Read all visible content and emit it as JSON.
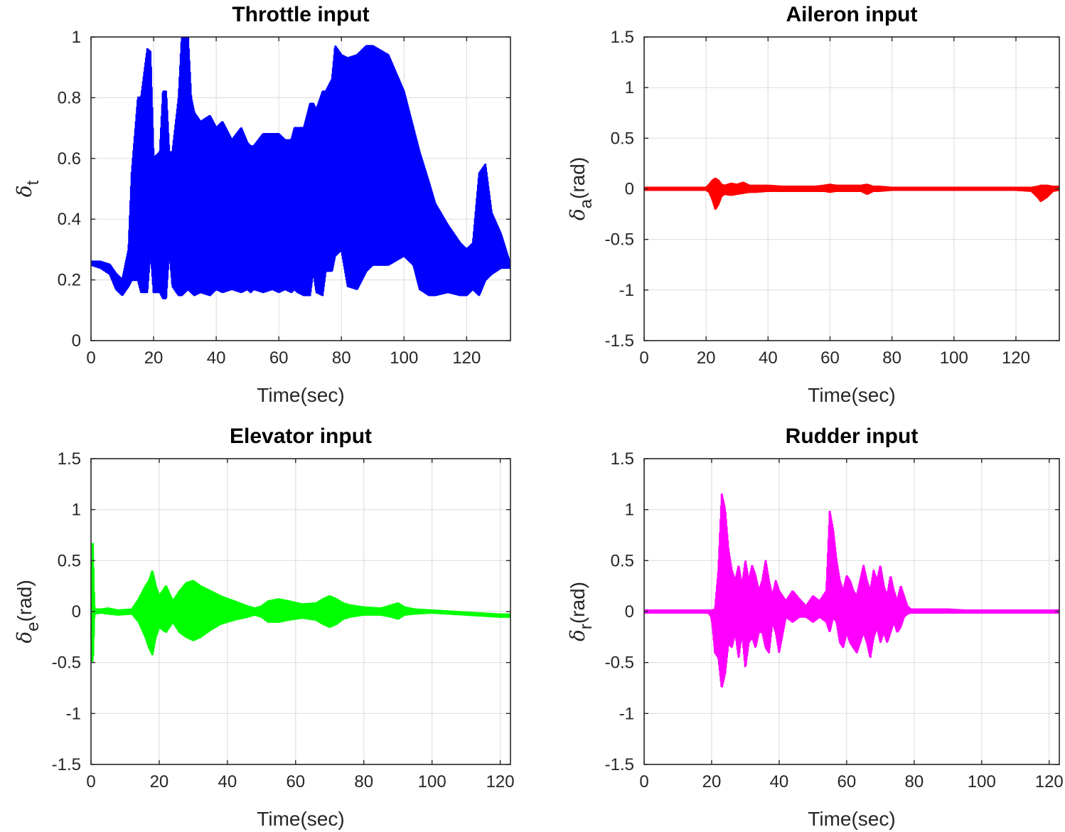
{
  "chart_data": [
    {
      "type": "line",
      "title": "Throttle input",
      "xlabel": "Time(sec)",
      "ylabel": {
        "symbol": "δ",
        "subscript": "t",
        "unit": ""
      },
      "xlim": [
        0,
        134
      ],
      "ylim": [
        0,
        1
      ],
      "xticks": [
        0,
        20,
        40,
        60,
        80,
        100,
        120
      ],
      "yticks": [
        0,
        0.2,
        0.4,
        0.6,
        0.8,
        1
      ],
      "ytick_labels": [
        "0",
        "0.2",
        "0.4",
        "0.6",
        "0.8",
        "1"
      ],
      "grid": true,
      "color": "#0000ff",
      "envelope": {
        "x": [
          0,
          3,
          6,
          8,
          10,
          12,
          13,
          15,
          16,
          18,
          19,
          20,
          22,
          23,
          24,
          25,
          26,
          28,
          29,
          31,
          32,
          33,
          35,
          38,
          40,
          42,
          45,
          48,
          50,
          51,
          52,
          55,
          58,
          60,
          62,
          64,
          65,
          66,
          68,
          70,
          71,
          72,
          74,
          75,
          77,
          78,
          80,
          82,
          85,
          88,
          90,
          95,
          100,
          103,
          105,
          108,
          110,
          114,
          118,
          120,
          122,
          124,
          126,
          128,
          131,
          134
        ],
        "high": [
          0.26,
          0.26,
          0.25,
          0.22,
          0.2,
          0.3,
          0.55,
          0.8,
          0.8,
          0.96,
          0.95,
          0.6,
          0.62,
          0.82,
          0.82,
          0.62,
          0.62,
          0.8,
          1.0,
          1.0,
          0.8,
          0.75,
          0.72,
          0.74,
          0.7,
          0.72,
          0.66,
          0.7,
          0.65,
          0.64,
          0.64,
          0.68,
          0.68,
          0.68,
          0.66,
          0.66,
          0.7,
          0.7,
          0.7,
          0.78,
          0.78,
          0.76,
          0.82,
          0.82,
          0.86,
          0.97,
          0.94,
          0.93,
          0.94,
          0.97,
          0.97,
          0.94,
          0.82,
          0.7,
          0.62,
          0.52,
          0.45,
          0.38,
          0.32,
          0.3,
          0.32,
          0.55,
          0.58,
          0.42,
          0.35,
          0.25
        ],
        "low": [
          0.25,
          0.24,
          0.22,
          0.17,
          0.15,
          0.18,
          0.2,
          0.2,
          0.16,
          0.16,
          0.3,
          0.16,
          0.16,
          0.14,
          0.14,
          0.3,
          0.18,
          0.15,
          0.15,
          0.17,
          0.16,
          0.15,
          0.16,
          0.15,
          0.17,
          0.16,
          0.17,
          0.16,
          0.17,
          0.16,
          0.17,
          0.16,
          0.17,
          0.16,
          0.17,
          0.16,
          0.17,
          0.16,
          0.15,
          0.15,
          0.23,
          0.16,
          0.15,
          0.23,
          0.23,
          0.28,
          0.3,
          0.18,
          0.17,
          0.23,
          0.25,
          0.25,
          0.28,
          0.25,
          0.17,
          0.15,
          0.15,
          0.16,
          0.15,
          0.15,
          0.17,
          0.15,
          0.2,
          0.22,
          0.24,
          0.24
        ]
      }
    },
    {
      "type": "line",
      "title": "Aileron input",
      "xlabel": "Time(sec)",
      "ylabel": {
        "symbol": "δ",
        "subscript": "a",
        "unit": "(rad)"
      },
      "xlim": [
        0,
        134
      ],
      "ylim": [
        -1.5,
        1.5
      ],
      "xticks": [
        0,
        20,
        40,
        60,
        80,
        100,
        120
      ],
      "yticks": [
        -1.5,
        -1,
        -0.5,
        0,
        0.5,
        1,
        1.5
      ],
      "ytick_labels": [
        "-1.5",
        "-1",
        "-0.5",
        "0",
        "0.5",
        "1",
        "1.5"
      ],
      "grid": true,
      "color": "#ff0000",
      "envelope": {
        "x": [
          0,
          20,
          21,
          22,
          23,
          24,
          25,
          26,
          28,
          30,
          32,
          34,
          36,
          40,
          45,
          50,
          55,
          58,
          60,
          62,
          65,
          68,
          70,
          72,
          74,
          76,
          80,
          100,
          120,
          125,
          127,
          128,
          130,
          132,
          134
        ],
        "high": [
          0.01,
          0.01,
          0.04,
          0.08,
          0.1,
          0.08,
          0.04,
          0.03,
          0.05,
          0.04,
          0.06,
          0.03,
          0.03,
          0.03,
          0.02,
          0.02,
          0.02,
          0.03,
          0.04,
          0.03,
          0.03,
          0.03,
          0.03,
          0.04,
          0.02,
          0.02,
          0.01,
          0.01,
          0.01,
          0.01,
          0.02,
          0.03,
          0.03,
          0.02,
          0.02
        ],
        "low": [
          -0.01,
          -0.01,
          -0.03,
          -0.1,
          -0.2,
          -0.15,
          -0.07,
          -0.05,
          -0.06,
          -0.05,
          -0.04,
          -0.03,
          -0.03,
          -0.02,
          -0.02,
          -0.02,
          -0.02,
          -0.02,
          -0.03,
          -0.02,
          -0.02,
          -0.02,
          -0.02,
          -0.05,
          -0.02,
          -0.02,
          -0.01,
          -0.01,
          -0.01,
          -0.02,
          -0.08,
          -0.12,
          -0.08,
          -0.02,
          -0.01
        ]
      }
    },
    {
      "type": "line",
      "title": "Elevator input",
      "xlabel": "Time(sec)",
      "ylabel": {
        "symbol": "δ",
        "subscript": "e",
        "unit": "(rad)"
      },
      "xlim": [
        0,
        123
      ],
      "ylim": [
        -1.5,
        1.5
      ],
      "xticks": [
        0,
        20,
        40,
        60,
        80,
        100,
        120
      ],
      "yticks": [
        -1.5,
        -1,
        -0.5,
        0,
        0.5,
        1,
        1.5
      ],
      "ytick_labels": [
        "-1.5",
        "-1",
        "-0.5",
        "0",
        "0.5",
        "1",
        "1.5"
      ],
      "grid": true,
      "color": "#00ff00",
      "envelope": {
        "x": [
          0,
          0.5,
          1,
          3,
          5,
          8,
          12,
          14,
          16,
          17,
          18,
          19,
          20,
          22,
          24,
          26,
          28,
          30,
          32,
          35,
          38,
          42,
          46,
          48,
          50,
          52,
          55,
          58,
          62,
          66,
          68,
          70,
          72,
          74,
          76,
          80,
          85,
          88,
          90,
          92,
          95,
          100,
          105,
          110,
          115,
          120,
          123
        ],
        "high": [
          0.0,
          0.7,
          0.02,
          0.02,
          0.03,
          0.01,
          0.02,
          0.12,
          0.25,
          0.3,
          0.4,
          0.25,
          0.15,
          0.25,
          0.1,
          0.2,
          0.28,
          0.3,
          0.25,
          0.2,
          0.15,
          0.1,
          0.05,
          0.03,
          0.05,
          0.1,
          0.12,
          0.1,
          0.07,
          0.08,
          0.12,
          0.15,
          0.12,
          0.08,
          0.06,
          0.04,
          0.03,
          0.06,
          0.08,
          0.04,
          0.02,
          0.01,
          0.0,
          -0.01,
          -0.02,
          -0.03,
          -0.03
        ],
        "low": [
          0.0,
          -0.55,
          -0.02,
          -0.01,
          -0.02,
          -0.03,
          -0.02,
          -0.1,
          -0.25,
          -0.35,
          -0.42,
          -0.25,
          -0.15,
          -0.2,
          -0.1,
          -0.2,
          -0.25,
          -0.28,
          -0.25,
          -0.18,
          -0.12,
          -0.08,
          -0.05,
          -0.03,
          -0.05,
          -0.1,
          -0.1,
          -0.08,
          -0.06,
          -0.08,
          -0.12,
          -0.15,
          -0.12,
          -0.07,
          -0.05,
          -0.03,
          -0.03,
          -0.05,
          -0.07,
          -0.03,
          -0.02,
          -0.01,
          -0.02,
          -0.03,
          -0.04,
          -0.05,
          -0.05
        ]
      }
    },
    {
      "type": "line",
      "title": "Rudder input",
      "xlabel": "Time(sec)",
      "ylabel": {
        "symbol": "δ",
        "subscript": "r",
        "unit": "(rad)"
      },
      "xlim": [
        0,
        123
      ],
      "ylim": [
        -1.5,
        1.5
      ],
      "xticks": [
        0,
        20,
        40,
        60,
        80,
        100,
        120
      ],
      "yticks": [
        -1.5,
        -1,
        -0.5,
        0,
        0.5,
        1,
        1.5
      ],
      "ytick_labels": [
        "-1.5",
        "-1",
        "-0.5",
        "0",
        "0.5",
        "1",
        "1.5"
      ],
      "grid": true,
      "color": "#ff00ff",
      "envelope": {
        "x": [
          0,
          19,
          20,
          21,
          22,
          23,
          24,
          25,
          26,
          27,
          28,
          29,
          30,
          31,
          32,
          33,
          34,
          35,
          36,
          37,
          38,
          39,
          40,
          42,
          44,
          46,
          48,
          50,
          52,
          54,
          55,
          56,
          57,
          58,
          59,
          60,
          61,
          62,
          63,
          64,
          65,
          66,
          67,
          68,
          69,
          70,
          71,
          72,
          73,
          74,
          75,
          76,
          77,
          78,
          79,
          80,
          85,
          90,
          95,
          100,
          110,
          123
        ],
        "high": [
          0.01,
          0.01,
          0.01,
          0.02,
          0.4,
          1.15,
          1.0,
          0.6,
          0.4,
          0.3,
          0.45,
          0.25,
          0.5,
          0.3,
          0.45,
          0.35,
          0.2,
          0.3,
          0.5,
          0.3,
          0.15,
          0.3,
          0.2,
          0.1,
          0.2,
          0.12,
          0.05,
          0.15,
          0.1,
          0.2,
          0.98,
          0.8,
          0.5,
          0.3,
          0.2,
          0.35,
          0.3,
          0.2,
          0.15,
          0.3,
          0.45,
          0.3,
          0.2,
          0.4,
          0.3,
          0.45,
          0.25,
          0.15,
          0.35,
          0.2,
          0.1,
          0.25,
          0.15,
          0.05,
          0.02,
          0.02,
          0.02,
          0.02,
          0.01,
          0.01,
          0.01,
          0.01
        ],
        "low": [
          -0.01,
          -0.01,
          -0.05,
          -0.4,
          -0.45,
          -0.75,
          -0.6,
          -0.3,
          -0.35,
          -0.2,
          -0.45,
          -0.2,
          -0.55,
          -0.3,
          -0.25,
          -0.35,
          -0.2,
          -0.2,
          -0.35,
          -0.4,
          -0.1,
          -0.2,
          -0.4,
          -0.05,
          -0.1,
          -0.05,
          -0.05,
          -0.1,
          -0.05,
          -0.1,
          -0.2,
          -0.05,
          -0.1,
          -0.3,
          -0.35,
          -0.2,
          -0.3,
          -0.35,
          -0.4,
          -0.3,
          -0.2,
          -0.3,
          -0.45,
          -0.25,
          -0.15,
          -0.3,
          -0.2,
          -0.3,
          -0.2,
          -0.1,
          -0.2,
          -0.15,
          -0.05,
          -0.02,
          -0.01,
          -0.01,
          -0.01,
          -0.01,
          -0.01,
          -0.01,
          -0.01,
          -0.01
        ]
      }
    }
  ]
}
